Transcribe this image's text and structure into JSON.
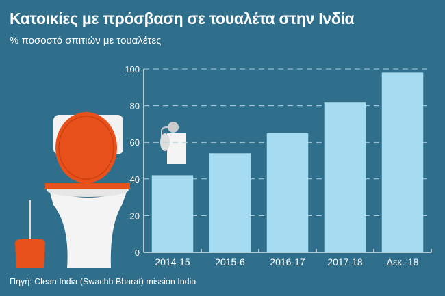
{
  "title": "Κατοικίες με πρόσβαση σε τουαλέτα στην Ινδία",
  "subtitle": "% ποσοστό σπιτιών με τουαλέτες",
  "source": "Πηγή: Clean India (Swachh Bharat) mission India",
  "colors": {
    "background": "#306f8b",
    "bar": "#a6dcf1",
    "toilet_lid": "#e9511c"
  },
  "chart_data": {
    "type": "bar",
    "title": "Κατοικίες με πρόσβαση σε τουαλέτα στην Ινδία",
    "subtitle": "% ποσοστό σπιτιών με τουαλέτες",
    "categories": [
      "2014-15",
      "2015-6",
      "2016-17",
      "2017-18",
      "Δεκ.-18"
    ],
    "values": [
      42,
      54,
      65,
      82,
      98
    ],
    "xlabel": "",
    "ylabel": "",
    "ylim": [
      0,
      100
    ],
    "yticks": [
      "0",
      "20",
      "40",
      "60",
      "80",
      "100"
    ],
    "grid": true
  }
}
